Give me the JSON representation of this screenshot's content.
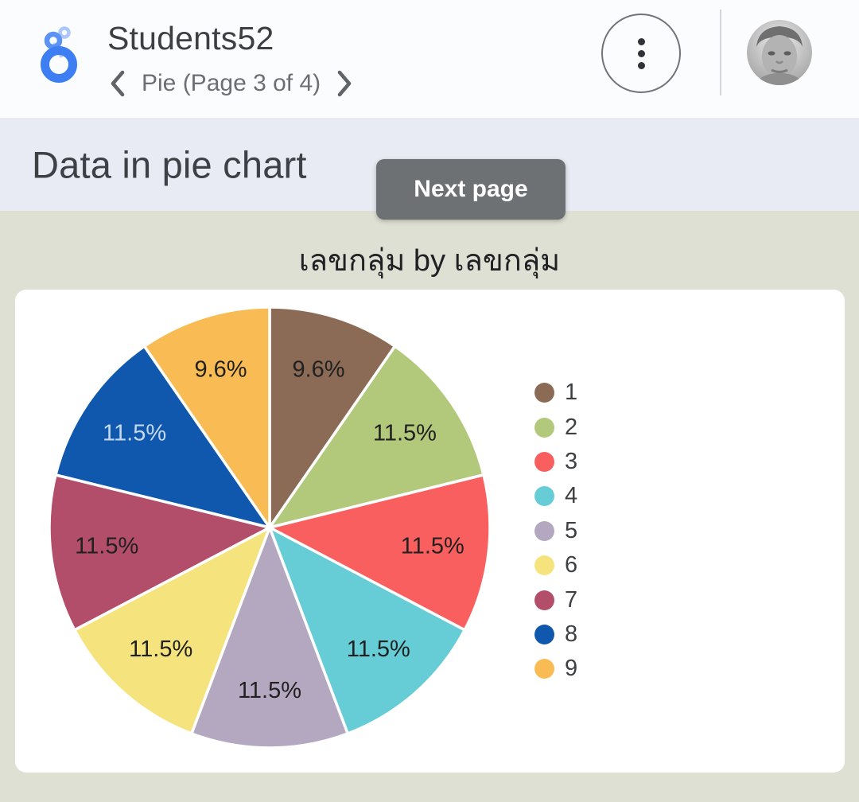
{
  "header": {
    "app_title": "Students52",
    "page_nav_label": "Pie (Page 3 of 4)",
    "icons": {
      "logo": "looker-studio-logo-icon",
      "prev": "chevron-left-icon",
      "next": "chevron-right-icon",
      "menu": "kebab-menu-icon",
      "avatar": "user-avatar-photo"
    }
  },
  "banner": {
    "title": "Data in pie chart"
  },
  "tooltip": {
    "label": "Next page"
  },
  "chart_data": {
    "type": "pie",
    "title": "เลขกลุ่ม by เลขกลุ่ม",
    "legend_position": "right",
    "direction": "clockwise",
    "start_angle_deg": 0,
    "categories": [
      "1",
      "2",
      "3",
      "4",
      "5",
      "6",
      "7",
      "8",
      "9"
    ],
    "values_pct": [
      9.6,
      11.5,
      11.5,
      11.5,
      11.5,
      11.5,
      11.5,
      11.5,
      9.6
    ],
    "slice_labels": [
      "9.6%",
      "11.5%",
      "11.5%",
      "11.5%",
      "11.5%",
      "11.5%",
      "11.5%",
      "11.5%",
      "9.6%"
    ],
    "colors": [
      "#8b6b55",
      "#b2c87b",
      "#fa5f5f",
      "#66ccd6",
      "#b3a8bf",
      "#f5e47d",
      "#b24d6a",
      "#0f58ae",
      "#f9bc55"
    ],
    "slice_label_colors": [
      "#212121",
      "#212121",
      "#212121",
      "#212121",
      "#212121",
      "#212121",
      "#212121",
      "#c6d8ec",
      "#212121"
    ],
    "separator_color": "#ffffff"
  },
  "theme": {
    "header_bg": "#fbfcfe",
    "banner_bg": "#e8eaf4",
    "content_bg": "#dee0d3",
    "card_bg": "#ffffff",
    "tooltip_bg": "#6e7174",
    "tooltip_text": "#ffffff",
    "title_text": "#3c4043",
    "subtitle_text": "#6b6e73",
    "page_title_text": "#3d4145",
    "legend_text": "#3c4043",
    "divider": "#d2d5d9",
    "logo_blue": "#3d7ef2",
    "logo_blue_mid": "#5b92f4",
    "logo_blue_light": "#aac6fa"
  }
}
